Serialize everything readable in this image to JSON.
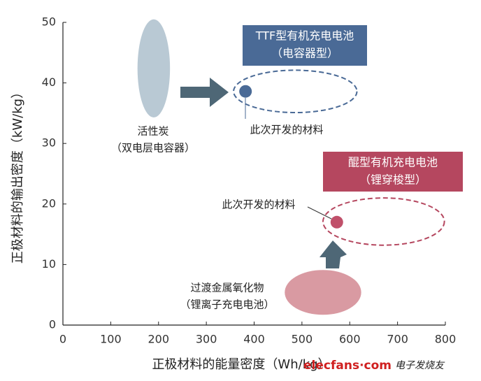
{
  "chart_data": {
    "type": "scatter",
    "xlabel": "正极材料的能量密度（Wh/kg）",
    "ylabel": "正极材料的输出密度（kW/kg）",
    "xlim": [
      0,
      800
    ],
    "ylim": [
      0,
      50
    ],
    "xticks": [
      0,
      100,
      200,
      300,
      400,
      500,
      600,
      700,
      800
    ],
    "yticks": [
      0,
      10,
      20,
      30,
      40,
      50
    ],
    "regions": [
      {
        "label": [
          "活性炭",
          "（双电层电容器）"
        ],
        "x": 190,
        "y": 42.4,
        "rx": 34,
        "ry": 8.1,
        "color": "#b9c9d4",
        "style": "filled"
      },
      {
        "label": [
          "过渡金属氧化物",
          "（锂离子充电电池）"
        ],
        "x": 544,
        "y": 5.4,
        "rx": 80,
        "ry": 3.7,
        "color": "#d99aa2",
        "style": "filled"
      },
      {
        "label": [
          "TTF型有机充电电池",
          "（电容器型）"
        ],
        "x": 486,
        "y": 38.6,
        "rx": 129,
        "ry": 3.5,
        "color": "#4a6a96",
        "style": "dashed"
      },
      {
        "label": [
          "醌型有机充电电池",
          "（锂穿梭型）"
        ],
        "x": 671,
        "y": 17.1,
        "rx": 127,
        "ry": 3.9,
        "color": "#b5475f",
        "style": "dashed"
      }
    ],
    "series": [
      {
        "name": "此次开发的材料",
        "color": "#4a6a96",
        "x": [
          382
        ],
        "values": [
          38.6
        ]
      },
      {
        "name": "此次开发的材料",
        "color": "#c0506a",
        "x": [
          573
        ],
        "values": [
          17.0
        ]
      }
    ],
    "watermark": [
      "elecfans·com",
      "电子发烧友"
    ]
  }
}
